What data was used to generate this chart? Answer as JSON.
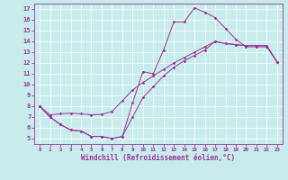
{
  "xlabel": "Windchill (Refroidissement éolien,°C)",
  "bg_color": "#c8ecec",
  "line_color": "#993399",
  "xlim": [
    -0.5,
    23.5
  ],
  "ylim": [
    4.5,
    17.5
  ],
  "xticks": [
    0,
    1,
    2,
    3,
    4,
    5,
    6,
    7,
    8,
    9,
    10,
    11,
    12,
    13,
    14,
    15,
    16,
    17,
    18,
    19,
    20,
    21,
    22,
    23
  ],
  "yticks": [
    5,
    6,
    7,
    8,
    9,
    10,
    11,
    12,
    13,
    14,
    15,
    16,
    17
  ],
  "line1_x": [
    0,
    1,
    2,
    3,
    4,
    5,
    6,
    7,
    8,
    9,
    10,
    11,
    12,
    13,
    14,
    15,
    16,
    17,
    18,
    19,
    20,
    21,
    22,
    23
  ],
  "line1_y": [
    8.0,
    7.0,
    6.3,
    5.8,
    5.7,
    5.2,
    5.2,
    5.0,
    5.2,
    8.3,
    11.2,
    11.0,
    13.2,
    15.8,
    15.8,
    17.1,
    16.7,
    16.2,
    15.2,
    14.2,
    13.5,
    13.5,
    13.5,
    12.1
  ],
  "line2_x": [
    0,
    1,
    2,
    3,
    4,
    5,
    6,
    7,
    8,
    9,
    10,
    11,
    12,
    13,
    14,
    15,
    16,
    17,
    18,
    19,
    20,
    21,
    22,
    23
  ],
  "line2_y": [
    8.0,
    7.2,
    7.3,
    7.35,
    7.3,
    7.2,
    7.25,
    7.5,
    8.5,
    9.5,
    10.2,
    10.8,
    11.4,
    12.0,
    12.5,
    13.0,
    13.5,
    14.0,
    13.8,
    13.7,
    13.6,
    13.6,
    13.6,
    12.1
  ],
  "line3_x": [
    0,
    1,
    2,
    3,
    4,
    5,
    6,
    7,
    8,
    9,
    10,
    11,
    12,
    13,
    14,
    15,
    16,
    17,
    18,
    19,
    20,
    21,
    22,
    23
  ],
  "line3_y": [
    8.0,
    7.0,
    6.3,
    5.8,
    5.7,
    5.2,
    5.2,
    5.0,
    5.2,
    7.0,
    8.8,
    9.8,
    10.8,
    11.6,
    12.2,
    12.7,
    13.2,
    14.0,
    13.8,
    13.7,
    13.6,
    13.6,
    13.6,
    12.1
  ]
}
